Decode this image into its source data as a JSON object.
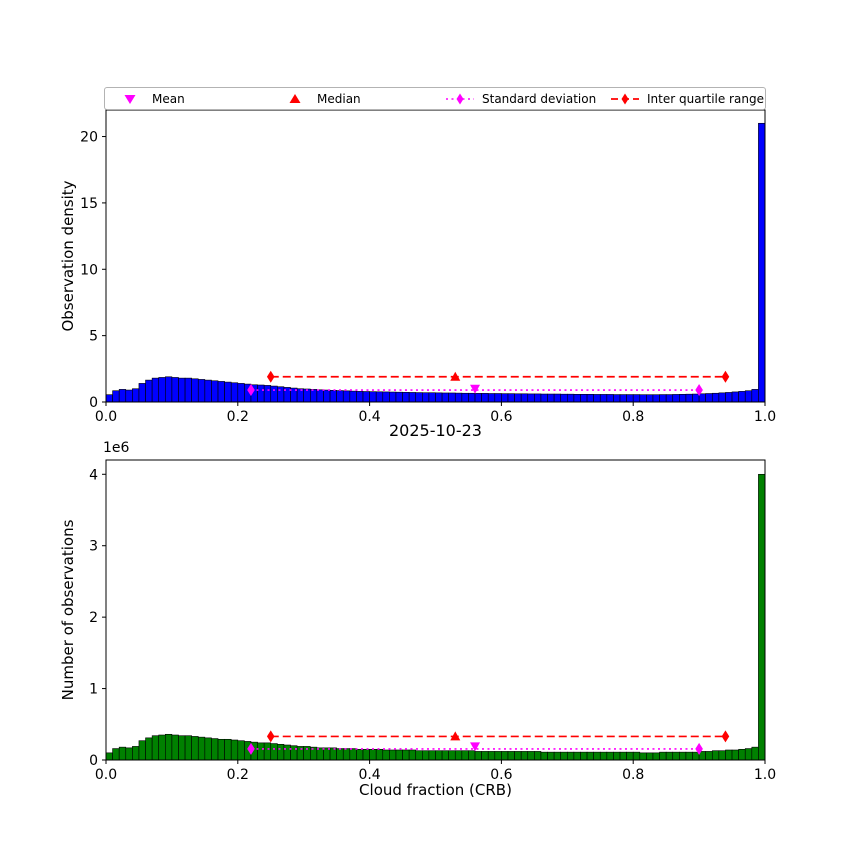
{
  "figure": {
    "background": "#ffffff"
  },
  "legend": {
    "items": [
      {
        "label": "Mean",
        "marker": "triangle-down",
        "color": "#ff00ff"
      },
      {
        "label": "Median",
        "marker": "triangle-up",
        "color": "#ff0000"
      },
      {
        "label": "Standard deviation",
        "marker": "diamond-dotted-line",
        "color": "#ff00ff"
      },
      {
        "label": "Inter quartile range",
        "marker": "diamond-dashed-line",
        "color": "#ff0000"
      }
    ]
  },
  "colors": {
    "mean": "#ff00ff",
    "median": "#ff0000",
    "std": "#ff00ff",
    "iqr": "#ff0000",
    "bar_top": "#0000ff",
    "bar_bottom": "#008000",
    "axis": "#000000"
  },
  "chart_data": [
    {
      "type": "bar",
      "subtype": "histogram",
      "subplot": "top",
      "ylabel": "Observation density",
      "bar_color": "#0000ff",
      "bin_start": 0.0,
      "bin_width": 0.01,
      "xlim": [
        0.0,
        1.0
      ],
      "ylim": [
        0,
        22
      ],
      "grid": false,
      "xticks": [
        0.0,
        0.2,
        0.4,
        0.6,
        0.8,
        1.0
      ],
      "xtick_labels": [
        "0.0",
        "0.2",
        "0.4",
        "0.6",
        "0.8",
        "1.0"
      ],
      "yticks": [
        0,
        5,
        10,
        15,
        20
      ],
      "ytick_labels": [
        "0",
        "5",
        "10",
        "15",
        "20"
      ],
      "values": [
        0.55,
        0.85,
        0.95,
        0.9,
        1.0,
        1.4,
        1.65,
        1.8,
        1.85,
        1.9,
        1.85,
        1.8,
        1.8,
        1.75,
        1.7,
        1.65,
        1.6,
        1.55,
        1.5,
        1.45,
        1.4,
        1.35,
        1.3,
        1.28,
        1.25,
        1.2,
        1.15,
        1.1,
        1.05,
        1.0,
        0.98,
        0.95,
        0.92,
        0.9,
        0.88,
        0.86,
        0.84,
        0.82,
        0.8,
        0.79,
        0.78,
        0.77,
        0.76,
        0.75,
        0.74,
        0.73,
        0.72,
        0.71,
        0.7,
        0.7,
        0.69,
        0.68,
        0.68,
        0.67,
        0.66,
        0.66,
        0.65,
        0.65,
        0.64,
        0.64,
        0.63,
        0.63,
        0.62,
        0.62,
        0.61,
        0.61,
        0.6,
        0.6,
        0.6,
        0.59,
        0.59,
        0.58,
        0.58,
        0.58,
        0.57,
        0.57,
        0.57,
        0.56,
        0.56,
        0.56,
        0.56,
        0.55,
        0.55,
        0.55,
        0.56,
        0.56,
        0.57,
        0.58,
        0.59,
        0.6,
        0.62,
        0.64,
        0.66,
        0.69,
        0.72,
        0.76,
        0.8,
        0.85,
        0.95,
        21.0
      ],
      "markers": {
        "mean": {
          "x": 0.56,
          "y": 1.0
        },
        "median": {
          "x": 0.53,
          "y": 1.9
        },
        "std_range": {
          "x1": 0.22,
          "x2": 0.9,
          "y": 0.9
        },
        "iqr_range": {
          "x1": 0.25,
          "x2": 0.94,
          "y": 1.9
        }
      }
    },
    {
      "type": "bar",
      "subtype": "histogram",
      "subplot": "bottom",
      "title": "2025-10-23",
      "xlabel": "Cloud fraction (CRB)",
      "ylabel": "Number of observations",
      "y_offset_text": "1e6",
      "y_unit_multiplier": 1000000,
      "bar_color": "#008000",
      "bin_start": 0.0,
      "bin_width": 0.01,
      "xlim": [
        0.0,
        1.0
      ],
      "ylim": [
        0,
        4.2
      ],
      "grid": false,
      "xticks": [
        0.0,
        0.2,
        0.4,
        0.6,
        0.8,
        1.0
      ],
      "xtick_labels": [
        "0.0",
        "0.2",
        "0.4",
        "0.6",
        "0.8",
        "1.0"
      ],
      "yticks": [
        0,
        1,
        2,
        3,
        4
      ],
      "ytick_labels": [
        "0",
        "1",
        "2",
        "3",
        "4"
      ],
      "values": [
        0.1,
        0.16,
        0.18,
        0.17,
        0.19,
        0.27,
        0.31,
        0.34,
        0.35,
        0.36,
        0.35,
        0.34,
        0.34,
        0.33,
        0.32,
        0.31,
        0.3,
        0.29,
        0.29,
        0.28,
        0.27,
        0.26,
        0.25,
        0.24,
        0.24,
        0.23,
        0.22,
        0.21,
        0.2,
        0.19,
        0.19,
        0.18,
        0.17,
        0.17,
        0.17,
        0.16,
        0.16,
        0.16,
        0.15,
        0.15,
        0.15,
        0.15,
        0.14,
        0.14,
        0.14,
        0.14,
        0.14,
        0.13,
        0.13,
        0.13,
        0.13,
        0.13,
        0.13,
        0.13,
        0.13,
        0.13,
        0.12,
        0.12,
        0.12,
        0.12,
        0.12,
        0.12,
        0.12,
        0.12,
        0.12,
        0.12,
        0.11,
        0.11,
        0.11,
        0.11,
        0.11,
        0.11,
        0.11,
        0.11,
        0.11,
        0.11,
        0.11,
        0.11,
        0.11,
        0.11,
        0.11,
        0.1,
        0.1,
        0.1,
        0.11,
        0.11,
        0.11,
        0.11,
        0.11,
        0.11,
        0.12,
        0.12,
        0.13,
        0.13,
        0.14,
        0.14,
        0.15,
        0.16,
        0.18,
        4.0
      ],
      "markers": {
        "mean": {
          "x": 0.56,
          "y": 0.19
        },
        "median": {
          "x": 0.53,
          "y": 0.33
        },
        "std_range": {
          "x1": 0.22,
          "x2": 0.9,
          "y": 0.155
        },
        "iqr_range": {
          "x1": 0.25,
          "x2": 0.94,
          "y": 0.33
        }
      }
    }
  ]
}
